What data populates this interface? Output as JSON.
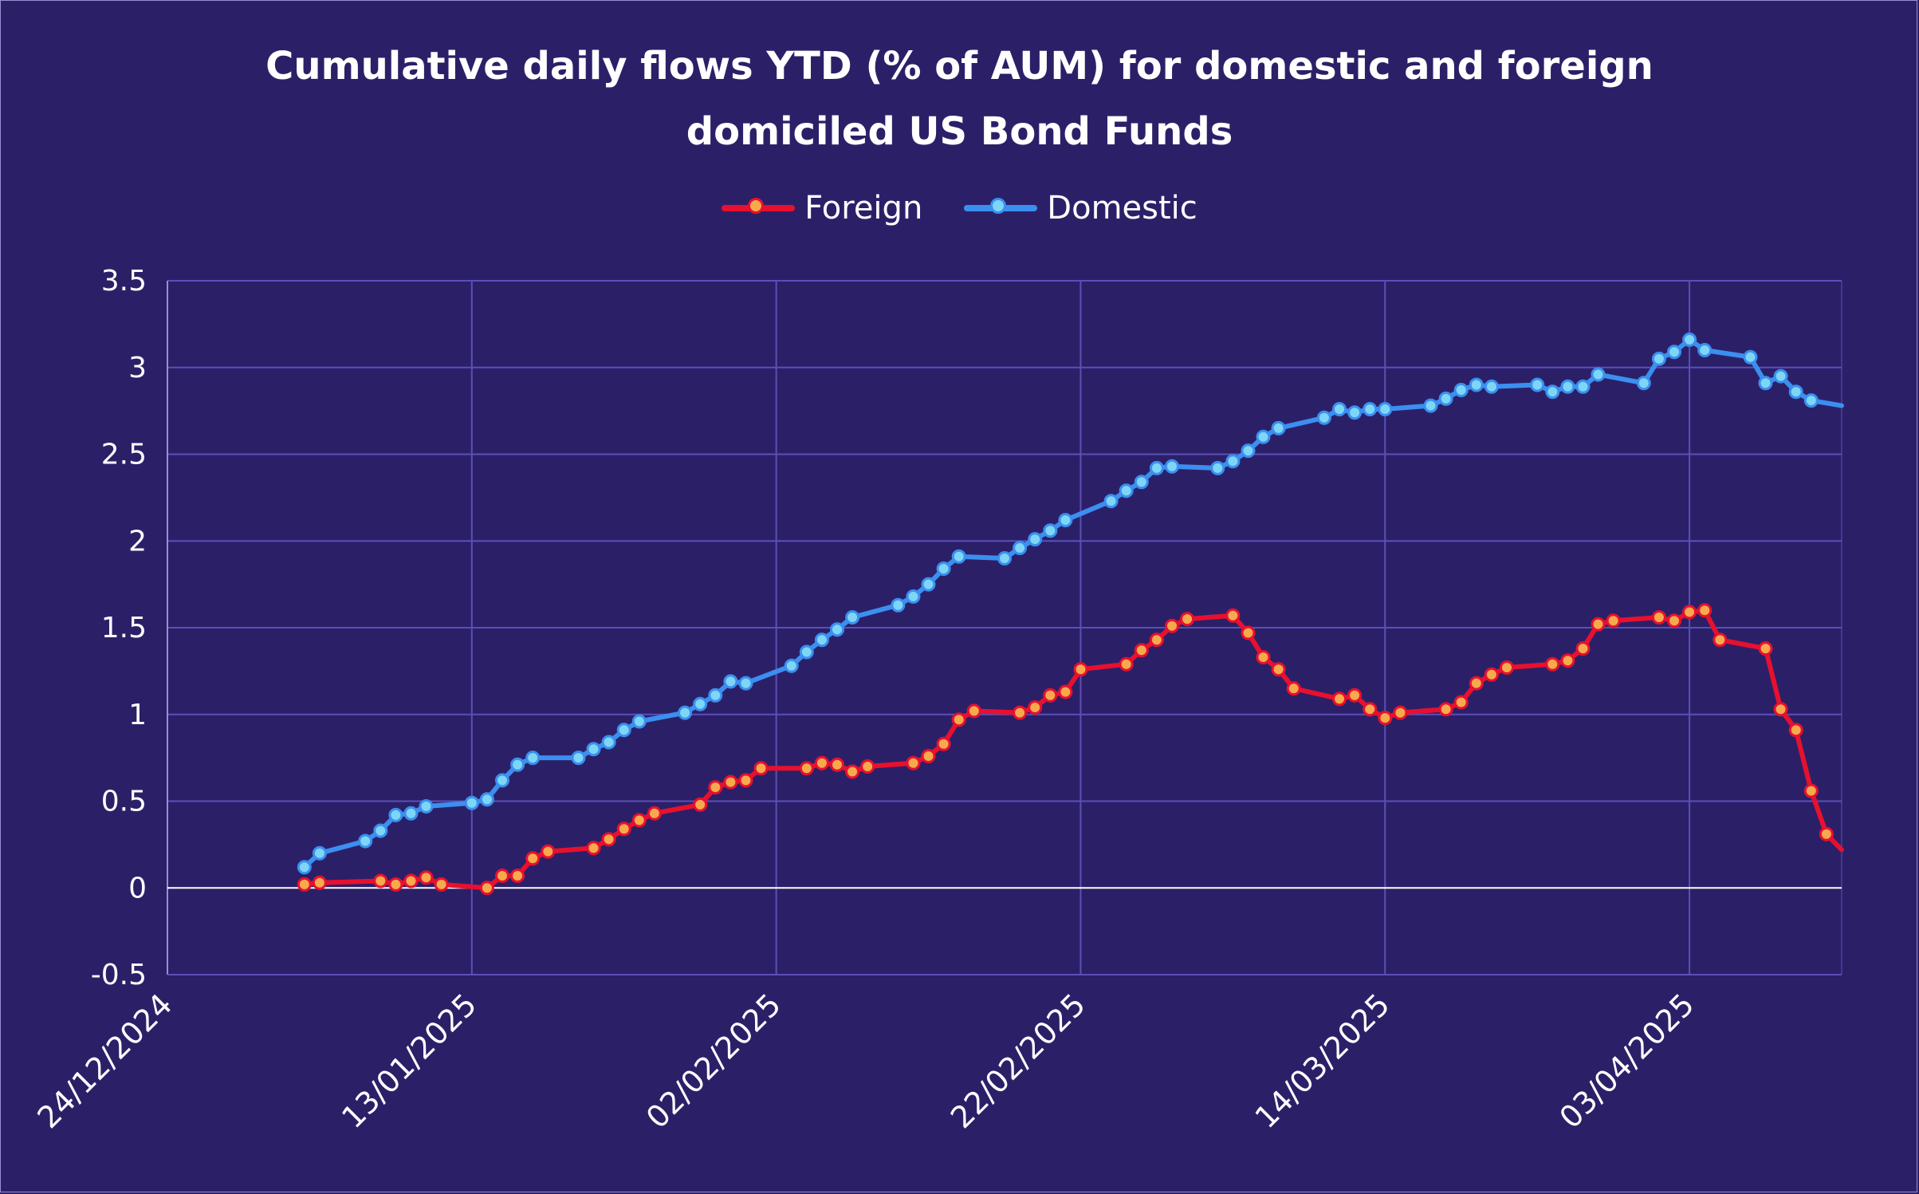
{
  "chart_data": {
    "type": "line",
    "title_lines": [
      "Cumulative daily flows YTD (% of AUM) for domestic and foreign",
      "domiciled US Bond Funds"
    ],
    "xlabel": "",
    "ylabel": "",
    "x_tick_labels": [
      "24/12/2024",
      "13/01/2025",
      "02/02/2025",
      "22/02/2025",
      "14/03/2025",
      "03/04/2025"
    ],
    "y_tick_labels": [
      "3.5",
      "3",
      "2.5",
      "2",
      "1.5",
      "1",
      "0.5",
      "0",
      "-0.5"
    ],
    "xlim": [
      "2024-12-24",
      "2025-04-13"
    ],
    "ylim": [
      -0.5,
      3.5
    ],
    "grid": true,
    "legend_position": "top-center",
    "colors": {
      "background": "#2b2068",
      "grid": "#5b4fb8",
      "zero_line": "#ffffff",
      "foreign": "#e8102e",
      "foreign_marker": "#f7a94d",
      "domestic": "#3b8ff0",
      "domestic_marker": "#7ed6f7"
    },
    "series": [
      {
        "name": "Foreign",
        "points": [
          [
            "2025-01-02",
            0.02
          ],
          [
            "2025-01-03",
            0.03
          ],
          [
            "2025-01-07",
            0.04
          ],
          [
            "2025-01-08",
            0.02
          ],
          [
            "2025-01-09",
            0.04
          ],
          [
            "2025-01-10",
            0.06
          ],
          [
            "2025-01-11",
            0.02
          ],
          [
            "2025-01-14",
            0.0
          ],
          [
            "2025-01-15",
            0.07
          ],
          [
            "2025-01-16",
            0.07
          ],
          [
            "2025-01-17",
            0.17
          ],
          [
            "2025-01-18",
            0.21
          ],
          [
            "2025-01-21",
            0.23
          ],
          [
            "2025-01-22",
            0.28
          ],
          [
            "2025-01-23",
            0.34
          ],
          [
            "2025-01-24",
            0.39
          ],
          [
            "2025-01-25",
            0.43
          ],
          [
            "2025-01-28",
            0.48
          ],
          [
            "2025-01-29",
            0.58
          ],
          [
            "2025-01-30",
            0.61
          ],
          [
            "2025-01-31",
            0.62
          ],
          [
            "2025-02-01",
            0.69
          ],
          [
            "2025-02-04",
            0.69
          ],
          [
            "2025-02-05",
            0.72
          ],
          [
            "2025-02-06",
            0.71
          ],
          [
            "2025-02-07",
            0.67
          ],
          [
            "2025-02-08",
            0.7
          ],
          [
            "2025-02-11",
            0.72
          ],
          [
            "2025-02-12",
            0.76
          ],
          [
            "2025-02-13",
            0.83
          ],
          [
            "2025-02-14",
            0.97
          ],
          [
            "2025-02-15",
            1.02
          ],
          [
            "2025-02-18",
            1.01
          ],
          [
            "2025-02-19",
            1.04
          ],
          [
            "2025-02-20",
            1.11
          ],
          [
            "2025-02-21",
            1.13
          ],
          [
            "2025-02-22",
            1.26
          ],
          [
            "2025-02-25",
            1.29
          ],
          [
            "2025-02-26",
            1.37
          ],
          [
            "2025-02-27",
            1.43
          ],
          [
            "2025-02-28",
            1.51
          ],
          [
            "2025-03-01",
            1.55
          ],
          [
            "2025-03-04",
            1.57
          ],
          [
            "2025-03-05",
            1.47
          ],
          [
            "2025-03-06",
            1.33
          ],
          [
            "2025-03-07",
            1.26
          ],
          [
            "2025-03-08",
            1.15
          ],
          [
            "2025-03-11",
            1.09
          ],
          [
            "2025-03-12",
            1.11
          ],
          [
            "2025-03-13",
            1.03
          ],
          [
            "2025-03-14",
            0.98
          ],
          [
            "2025-03-15",
            1.01
          ],
          [
            "2025-03-18",
            1.03
          ],
          [
            "2025-03-19",
            1.07
          ],
          [
            "2025-03-20",
            1.18
          ],
          [
            "2025-03-21",
            1.23
          ],
          [
            "2025-03-22",
            1.27
          ],
          [
            "2025-03-25",
            1.29
          ],
          [
            "2025-03-26",
            1.31
          ],
          [
            "2025-03-27",
            1.38
          ],
          [
            "2025-03-28",
            1.52
          ],
          [
            "2025-03-29",
            1.54
          ],
          [
            "2025-04-01",
            1.56
          ],
          [
            "2025-04-02",
            1.54
          ],
          [
            "2025-04-03",
            1.59
          ],
          [
            "2025-04-04",
            1.6
          ],
          [
            "2025-04-05",
            1.43
          ],
          [
            "2025-04-08",
            1.38
          ],
          [
            "2025-04-09",
            1.03
          ],
          [
            "2025-04-10",
            0.91
          ],
          [
            "2025-04-11",
            0.56
          ],
          [
            "2025-04-12",
            0.31
          ],
          [
            "2025-04-14",
            0.22
          ]
        ]
      },
      {
        "name": "Domestic",
        "points": [
          [
            "2025-01-02",
            0.12
          ],
          [
            "2025-01-03",
            0.2
          ],
          [
            "2025-01-06",
            0.27
          ],
          [
            "2025-01-07",
            0.33
          ],
          [
            "2025-01-08",
            0.42
          ],
          [
            "2025-01-09",
            0.43
          ],
          [
            "2025-01-10",
            0.47
          ],
          [
            "2025-01-13",
            0.49
          ],
          [
            "2025-01-14",
            0.51
          ],
          [
            "2025-01-15",
            0.62
          ],
          [
            "2025-01-16",
            0.71
          ],
          [
            "2025-01-17",
            0.75
          ],
          [
            "2025-01-20",
            0.75
          ],
          [
            "2025-01-21",
            0.8
          ],
          [
            "2025-01-22",
            0.84
          ],
          [
            "2025-01-23",
            0.91
          ],
          [
            "2025-01-24",
            0.96
          ],
          [
            "2025-01-27",
            1.01
          ],
          [
            "2025-01-28",
            1.06
          ],
          [
            "2025-01-29",
            1.11
          ],
          [
            "2025-01-30",
            1.19
          ],
          [
            "2025-01-31",
            1.18
          ],
          [
            "2025-02-03",
            1.28
          ],
          [
            "2025-02-04",
            1.36
          ],
          [
            "2025-02-05",
            1.43
          ],
          [
            "2025-02-06",
            1.49
          ],
          [
            "2025-02-07",
            1.56
          ],
          [
            "2025-02-10",
            1.63
          ],
          [
            "2025-02-11",
            1.68
          ],
          [
            "2025-02-12",
            1.75
          ],
          [
            "2025-02-13",
            1.84
          ],
          [
            "2025-02-14",
            1.91
          ],
          [
            "2025-02-17",
            1.9
          ],
          [
            "2025-02-18",
            1.96
          ],
          [
            "2025-02-19",
            2.01
          ],
          [
            "2025-02-20",
            2.06
          ],
          [
            "2025-02-21",
            2.12
          ],
          [
            "2025-02-24",
            2.23
          ],
          [
            "2025-02-25",
            2.29
          ],
          [
            "2025-02-26",
            2.34
          ],
          [
            "2025-02-27",
            2.42
          ],
          [
            "2025-02-28",
            2.43
          ],
          [
            "2025-03-03",
            2.42
          ],
          [
            "2025-03-04",
            2.46
          ],
          [
            "2025-03-05",
            2.52
          ],
          [
            "2025-03-06",
            2.6
          ],
          [
            "2025-03-07",
            2.65
          ],
          [
            "2025-03-10",
            2.71
          ],
          [
            "2025-03-11",
            2.76
          ],
          [
            "2025-03-12",
            2.74
          ],
          [
            "2025-03-13",
            2.76
          ],
          [
            "2025-03-14",
            2.76
          ],
          [
            "2025-03-17",
            2.78
          ],
          [
            "2025-03-18",
            2.82
          ],
          [
            "2025-03-19",
            2.87
          ],
          [
            "2025-03-20",
            2.9
          ],
          [
            "2025-03-21",
            2.89
          ],
          [
            "2025-03-24",
            2.9
          ],
          [
            "2025-03-25",
            2.86
          ],
          [
            "2025-03-26",
            2.89
          ],
          [
            "2025-03-27",
            2.89
          ],
          [
            "2025-03-28",
            2.96
          ],
          [
            "2025-03-31",
            2.91
          ],
          [
            "2025-04-01",
            3.05
          ],
          [
            "2025-04-02",
            3.09
          ],
          [
            "2025-04-03",
            3.16
          ],
          [
            "2025-04-04",
            3.1
          ],
          [
            "2025-04-07",
            3.06
          ],
          [
            "2025-04-08",
            2.91
          ],
          [
            "2025-04-09",
            2.95
          ],
          [
            "2025-04-10",
            2.86
          ],
          [
            "2025-04-11",
            2.81
          ],
          [
            "2025-04-14",
            2.78
          ]
        ]
      }
    ]
  }
}
